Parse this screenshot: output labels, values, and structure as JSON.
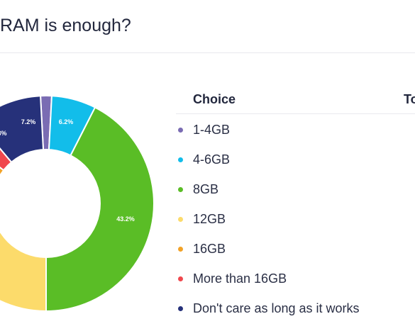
{
  "question": {
    "title": "RAM is enough?"
  },
  "table": {
    "header_choice": "Choice",
    "header_total": "To"
  },
  "choices": [
    {
      "label": "1-4GB",
      "color": "#7a6cb3"
    },
    {
      "label": "4-6GB",
      "color": "#12bdea"
    },
    {
      "label": "8GB",
      "color": "#5abd26"
    },
    {
      "label": "12GB",
      "color": "#fcdb6b"
    },
    {
      "label": "16GB",
      "color": "#f2a227"
    },
    {
      "label": "More than 16GB",
      "color": "#f0474d"
    },
    {
      "label": "Don't care as long as it works",
      "color": "#26317a"
    }
  ],
  "chart_data": {
    "type": "pie",
    "categories": [
      "1-4GB",
      "4-6GB",
      "8GB",
      "12GB",
      "16GB",
      "More than 16GB",
      "Don't care as long as it works"
    ],
    "data_labels": [
      "",
      "6.2%",
      "43.2%",
      "",
      "",
      "3%",
      "7.2%"
    ]
  }
}
